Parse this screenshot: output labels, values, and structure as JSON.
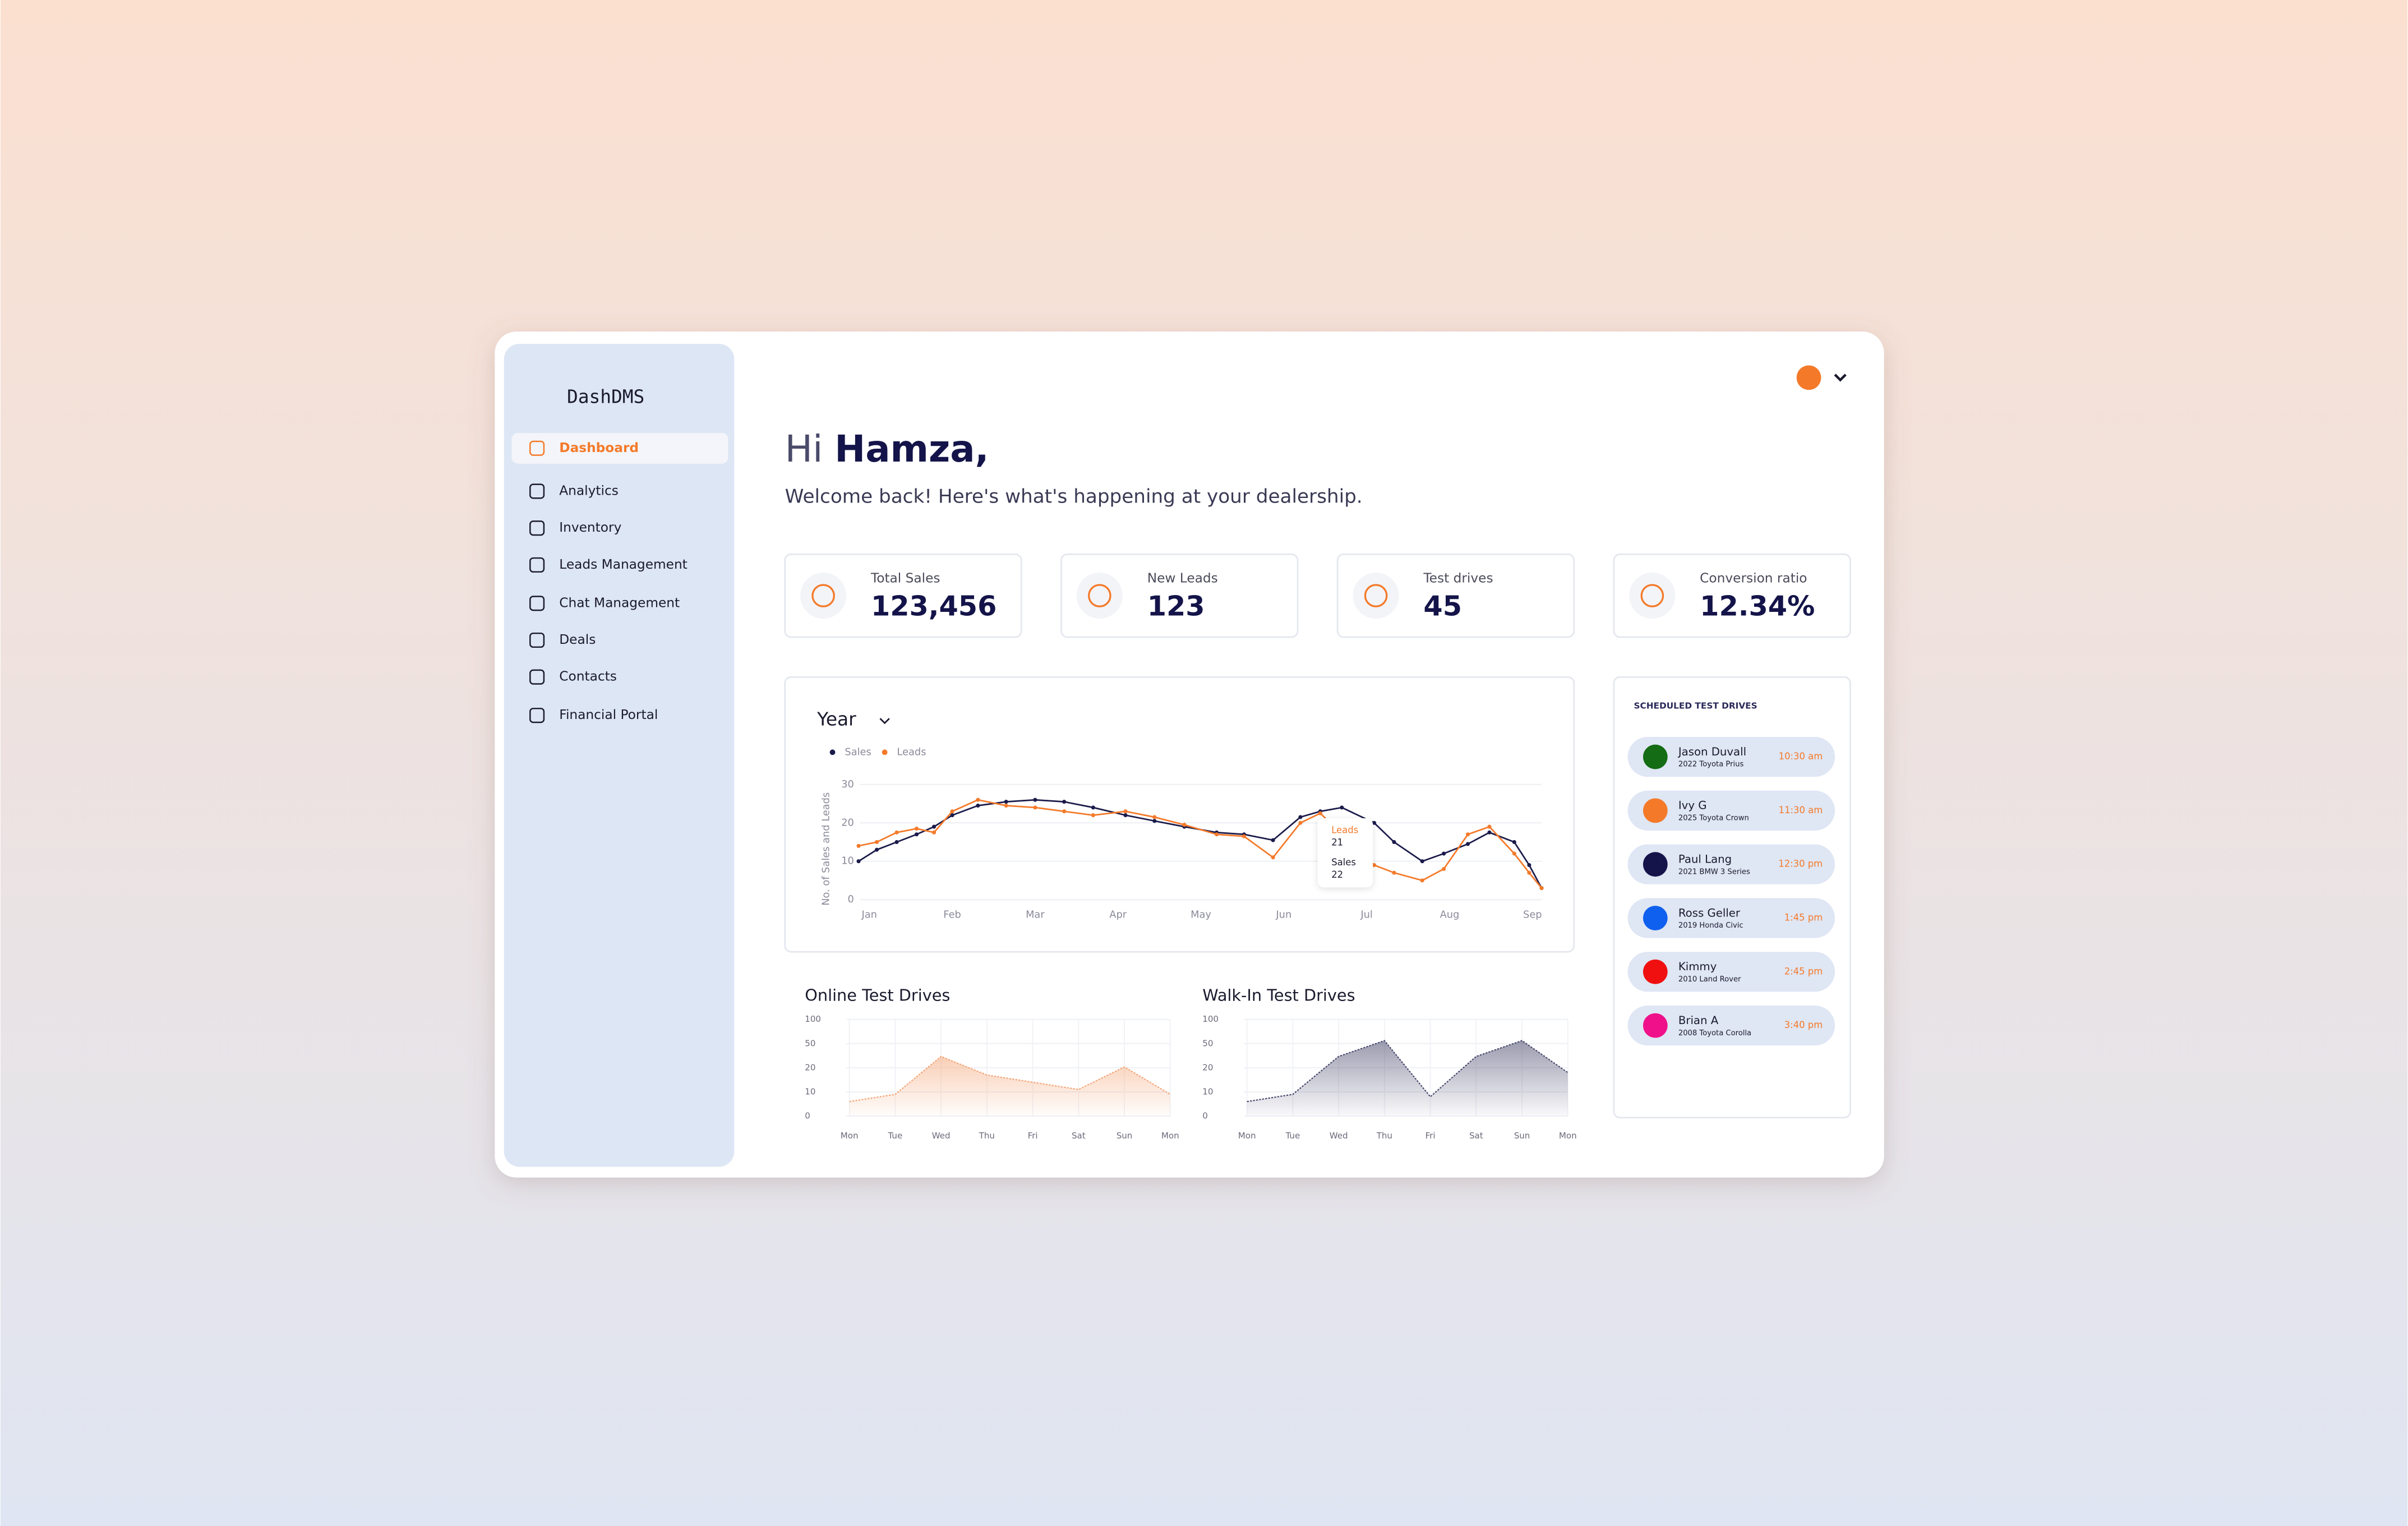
{
  "brand": "DashDMS",
  "nav": [
    {
      "label": "Dashboard",
      "active": true
    },
    {
      "label": "Analytics"
    },
    {
      "label": "Inventory"
    },
    {
      "label": "Leads Management"
    },
    {
      "label": "Chat Management"
    },
    {
      "label": "Deals"
    },
    {
      "label": "Contacts"
    },
    {
      "label": "Financial Portal"
    }
  ],
  "greeting": {
    "hi": "Hi",
    "name": "Hamza,",
    "subtitle": "Welcome back! Here's what's happening at your dealership."
  },
  "stats": [
    {
      "label": "Total Sales",
      "value": "123,456"
    },
    {
      "label": "New Leads",
      "value": "123"
    },
    {
      "label": "Test drives",
      "value": "45"
    },
    {
      "label": "Conversion ratio",
      "value": "12.34%"
    }
  ],
  "schedule": {
    "title": "SCHEDULED TEST DRIVES",
    "items": [
      {
        "name": "Jason Duvall",
        "car": "2022 Toyota Prius",
        "time": "10:30 am",
        "color": "#146c14"
      },
      {
        "name": "Ivy G",
        "car": "2025 Toyota Crown",
        "time": "11:30 am",
        "color": "#f47a2a"
      },
      {
        "name": "Paul Lang",
        "car": "2021 BMW 3 Series",
        "time": "12:30 pm",
        "color": "#14144a"
      },
      {
        "name": "Ross Geller",
        "car": "2019 Honda Civic",
        "time": "1:45 pm",
        "color": "#1060f0"
      },
      {
        "name": "Kimmy",
        "car": "2010 Land Rover",
        "time": "2:45 pm",
        "color": "#f01010"
      },
      {
        "name": "Brian A",
        "car": "2008 Toyota Corolla",
        "time": "3:40 pm",
        "color": "#f0108a"
      }
    ]
  },
  "chart_data": [
    {
      "type": "line",
      "title": "Year",
      "ylabel": "No. of Sales and Leads",
      "x": [
        -0.13,
        0.09,
        0.33,
        0.57,
        0.78,
        1.0,
        1.31,
        1.65,
        2.0,
        2.35,
        2.7,
        3.09,
        3.44,
        3.8,
        4.19,
        4.52,
        4.87,
        5.2,
        5.44,
        5.7,
        6.09,
        6.33,
        6.67,
        6.93,
        7.22,
        7.48,
        7.78,
        7.96,
        8.11
      ],
      "xlim": [
        -0.2,
        8.2
      ],
      "xticks": [
        {
          "value": 0,
          "label": "Jan"
        },
        {
          "value": 1,
          "label": "Feb"
        },
        {
          "value": 2,
          "label": "Mar"
        },
        {
          "value": 3,
          "label": "Apr"
        },
        {
          "value": 4,
          "label": "May"
        },
        {
          "value": 5,
          "label": "Jun"
        },
        {
          "value": 6,
          "label": "Jul"
        },
        {
          "value": 7,
          "label": "Aug"
        },
        {
          "value": 8,
          "label": "Sep"
        }
      ],
      "ylim": [
        0,
        30
      ],
      "yticks": [
        0,
        10,
        20,
        30
      ],
      "grid": true,
      "series": [
        {
          "name": "Sales",
          "color": "#1b1b4b",
          "values": [
            10,
            13,
            15,
            17,
            19,
            22,
            24.5,
            25.5,
            26,
            25.5,
            24,
            22,
            20.5,
            19,
            17.5,
            17,
            15.5,
            21.5,
            23,
            24,
            20,
            15,
            10,
            12,
            14.5,
            17.5,
            15,
            9,
            3
          ]
        },
        {
          "name": "Leads",
          "color": "#f47a2a",
          "values": [
            14,
            15,
            17.5,
            18.5,
            17.5,
            23,
            26,
            24.5,
            24,
            23,
            22,
            23,
            21.5,
            19.5,
            17,
            16.5,
            11,
            20,
            22.5,
            17,
            9,
            7,
            5,
            8,
            17,
            19,
            12,
            7,
            3
          ]
        }
      ],
      "tooltip": [
        {
          "name": "Leads",
          "value": 21
        },
        {
          "name": "Sales",
          "value": 22
        }
      ]
    },
    {
      "type": "area",
      "title": "Online Test Drives",
      "categories": [
        "Mon",
        "Tue",
        "Wed",
        "Thu",
        "Fri",
        "Sat",
        "Sun",
        "Mon"
      ],
      "values": [
        6,
        9,
        34,
        17,
        14,
        11,
        21,
        9
      ],
      "color": "#f4a77a",
      "ylim": [
        0,
        100
      ],
      "yticks": [
        0,
        10,
        20,
        50,
        100
      ],
      "grid": true
    },
    {
      "type": "area",
      "title": "Walk-In Test Drives",
      "categories": [
        "Mon",
        "Tue",
        "Wed",
        "Thu",
        "Fri",
        "Sat",
        "Sun",
        "Mon"
      ],
      "values": [
        6,
        9,
        34,
        56,
        8,
        34,
        56,
        18
      ],
      "color": "#4a4a6e",
      "ylim": [
        0,
        100
      ],
      "yticks": [
        0,
        10,
        20,
        50,
        100
      ],
      "grid": true
    }
  ]
}
